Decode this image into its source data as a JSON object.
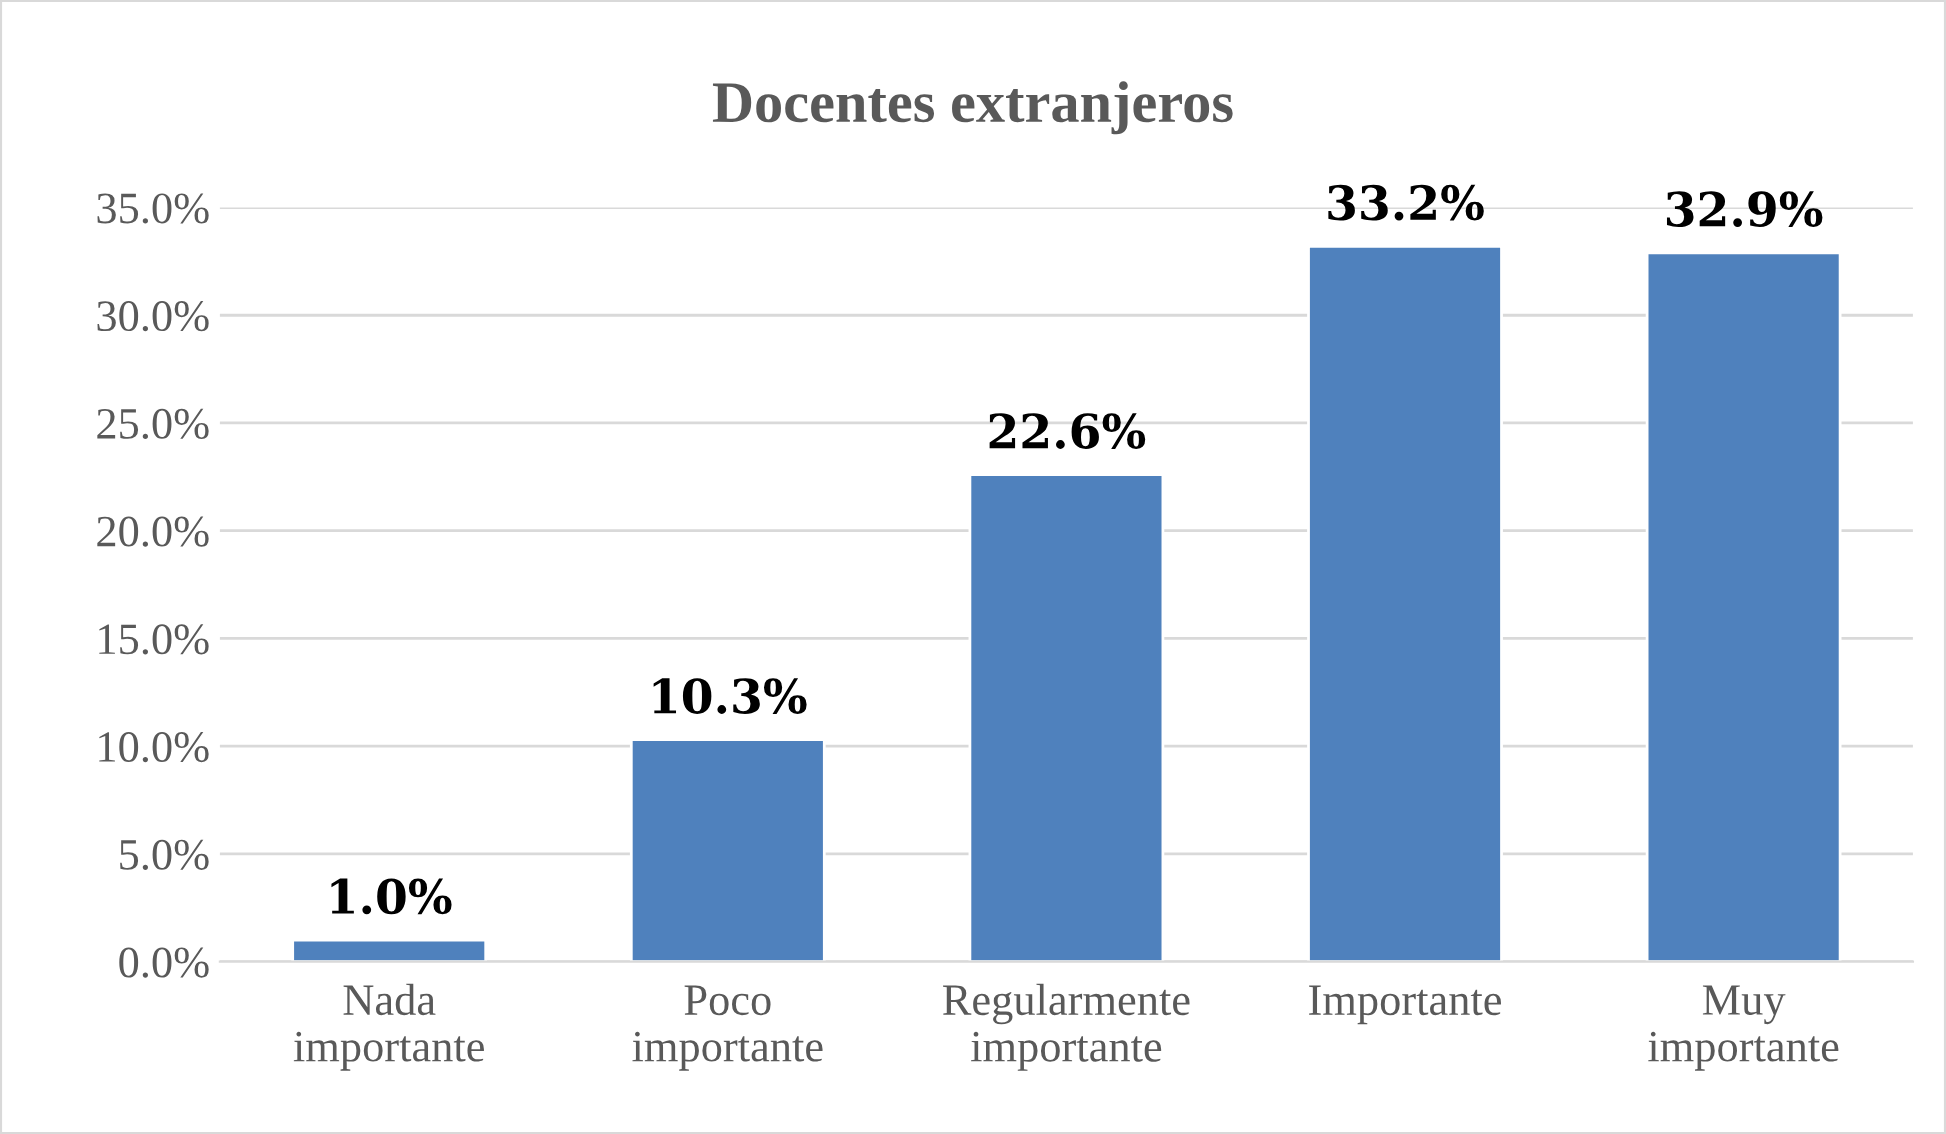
{
  "chart_data": {
    "type": "bar",
    "title": "Docentes extranjeros",
    "categories": [
      "Nada\nimportante",
      "Poco\nimportante",
      "Regularmente\nimportante",
      "Importante",
      "Muy\nimportante"
    ],
    "values": [
      1.0,
      10.3,
      22.6,
      33.2,
      32.9
    ],
    "value_labels": [
      "1.0%",
      "10.3%",
      "22.6%",
      "33.2%",
      "32.9%"
    ],
    "color": "#4f81bd",
    "ylim": [
      0,
      35
    ],
    "yticks": [
      {
        "value": 0,
        "label": "0.0%"
      },
      {
        "value": 5,
        "label": "5.0%"
      },
      {
        "value": 10,
        "label": "10.0%"
      },
      {
        "value": 15,
        "label": "15.0%"
      },
      {
        "value": 20,
        "label": "20.0%"
      },
      {
        "value": 25,
        "label": "25.0%"
      },
      {
        "value": 30,
        "label": "30.0%"
      },
      {
        "value": 35,
        "label": "35.0%"
      }
    ],
    "grid": "y"
  }
}
